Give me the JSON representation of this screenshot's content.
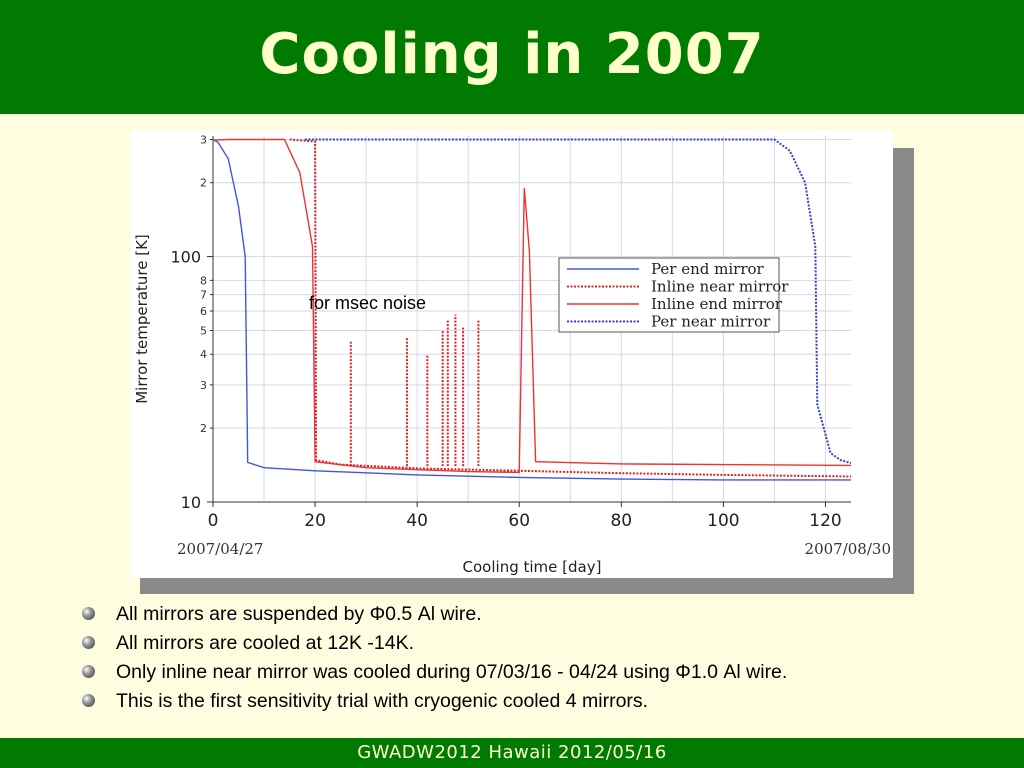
{
  "slide": {
    "title": "Cooling in 2007",
    "footer": "GWADW2012 Hawaii 2012/05/16",
    "colors": {
      "header_bg": "#007a00",
      "title_text": "#ffffcc",
      "slide_bg": "#fdfddf"
    }
  },
  "bullets": [
    "All mirrors are suspended by Φ0.5 Al wire.",
    "All mirrors are cooled at 12K -14K.",
    "Only inline near mirror was cooled during 07/03/16 - 04/24 using Φ1.0 Al wire.",
    "This is the first sensitivity trial with cryogenic cooled 4 mirrors."
  ],
  "chart_data": {
    "type": "line",
    "xlabel": "Cooling time [day]",
    "ylabel": "Mirror temperature [K]",
    "xlim": [
      0,
      125
    ],
    "ylim": [
      10,
      310
    ],
    "yscale": "log",
    "x_ticks": [
      "0",
      "20",
      "40",
      "60",
      "80",
      "100",
      "120"
    ],
    "y_major_ticks": [
      "10",
      "100"
    ],
    "y_minor_ticks": [
      "2",
      "3",
      "4",
      "5",
      "6",
      "7",
      "8",
      "2",
      "3"
    ],
    "x_start_date": "2007/04/27",
    "x_end_date": "2007/08/30",
    "grid": true,
    "legend_position": "right",
    "annotation": "for msec noise",
    "series": [
      {
        "name": "Per end mirror",
        "color": "#4455dd",
        "style": "solid",
        "points": [
          [
            0,
            300
          ],
          [
            1,
            292
          ],
          [
            3,
            250
          ],
          [
            5,
            160
          ],
          [
            6.3,
            100
          ],
          [
            6.8,
            14.5
          ],
          [
            10,
            13.8
          ],
          [
            20,
            13.4
          ],
          [
            40,
            12.9
          ],
          [
            60,
            12.6
          ],
          [
            80,
            12.4
          ],
          [
            100,
            12.3
          ],
          [
            125,
            12.3
          ]
        ]
      },
      {
        "name": "Inline near mirror",
        "color": "#dd2222",
        "style": "dotted",
        "points": [
          [
            15,
            300
          ],
          [
            20,
            294
          ],
          [
            20.2,
            14.8
          ],
          [
            25,
            14.2
          ],
          [
            40,
            13.7
          ],
          [
            60,
            13.4
          ],
          [
            80,
            13.1
          ],
          [
            100,
            12.9
          ],
          [
            125,
            12.7
          ]
        ]
      },
      {
        "name": "Inline end mirror",
        "color": "#ee3333",
        "style": "solid",
        "points": [
          [
            0,
            298
          ],
          [
            3,
            300
          ],
          [
            14,
            300
          ],
          [
            17,
            220
          ],
          [
            19.5,
            110
          ],
          [
            20,
            14.6
          ],
          [
            30,
            13.8
          ],
          [
            50,
            13.3
          ],
          [
            60,
            13.2
          ],
          [
            61,
            190
          ],
          [
            62,
            105
          ],
          [
            63.2,
            14.6
          ],
          [
            80,
            14.3
          ],
          [
            100,
            14.2
          ],
          [
            125,
            14.1
          ]
        ]
      },
      {
        "name": "Per near mirror",
        "color": "#3344cc",
        "style": "dotted",
        "points": [
          [
            18,
            300
          ],
          [
            110,
            300
          ],
          [
            113,
            270
          ],
          [
            116,
            200
          ],
          [
            118,
            110
          ],
          [
            118.4,
            25
          ],
          [
            121,
            15.8
          ],
          [
            123,
            14.8
          ],
          [
            125,
            14.4
          ]
        ]
      }
    ],
    "spikes": [
      {
        "x": 27,
        "value": 45
      },
      {
        "x": 38,
        "value": 47
      },
      {
        "x": 42,
        "value": 40
      },
      {
        "x": 45,
        "value": 50
      },
      {
        "x": 46,
        "value": 55
      },
      {
        "x": 47.5,
        "value": 58
      },
      {
        "x": 49,
        "value": 52
      },
      {
        "x": 52,
        "value": 55
      }
    ]
  }
}
